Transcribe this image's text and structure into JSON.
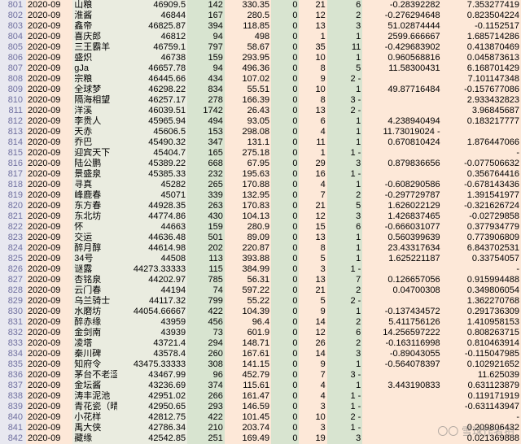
{
  "colors": {
    "rownum_bg": "#e8e8f0",
    "rownum_fg": "#7070a0",
    "peach": "#fde8d8",
    "olive": "#eaece0",
    "sage": "#d8e4d0"
  },
  "watermark": "〇〇 雪球作者拍",
  "columns": [
    "row",
    "date",
    "name",
    "c3",
    "c4",
    "c5",
    "c6",
    "c7",
    "c8",
    "c9",
    "c10"
  ],
  "rows": [
    {
      "row": "801",
      "date": "2020-09",
      "name": "山粮",
      "c3": "46909.5",
      "c4": "142",
      "c5": "330.35",
      "c6": "0",
      "c7": "21",
      "c8": "6",
      "c9": "-0.28392282",
      "c10": "7.353277419"
    },
    {
      "row": "802",
      "date": "2020-09",
      "name": "淮酱",
      "c3": "46844",
      "c4": "167",
      "c5": "280.5",
      "c6": "0",
      "c7": "12",
      "c8": "2",
      "c9": "-0.276294648",
      "c10": "0.823504224"
    },
    {
      "row": "803",
      "date": "2020-09",
      "name": "鑫帝",
      "c3": "46825.87",
      "c4": "394",
      "c5": "118.85",
      "c6": "0",
      "c7": "13",
      "c8": "3",
      "c9": "51.02874444",
      "c10": "-0.1152517"
    },
    {
      "row": "804",
      "date": "2020-09",
      "name": "喜庆郎",
      "c3": "46812",
      "c4": "94",
      "c5": "498",
      "c6": "0",
      "c7": "1",
      "c8": "1",
      "c9": "2599.666667",
      "c10": "1.685714286"
    },
    {
      "row": "805",
      "date": "2020-09",
      "name": "三王霸羊",
      "c3": "46759.1",
      "c4": "797",
      "c5": "58.67",
      "c6": "0",
      "c7": "35",
      "c8": "11",
      "c9": "-0.429683902",
      "c10": "0.413870469"
    },
    {
      "row": "806",
      "date": "2020-09",
      "name": "盛炽",
      "c3": "46738",
      "c4": "159",
      "c5": "293.95",
      "c6": "0",
      "c7": "10",
      "c8": "1",
      "c9": "0.960568816",
      "c10": "0.045873613"
    },
    {
      "row": "807",
      "date": "2020-09",
      "name": "gJa",
      "c3": "46657.78",
      "c4": "94",
      "c5": "496.36",
      "c6": "0",
      "c7": "8",
      "c8": "5",
      "c9": "11.58300431",
      "c10": "6.168701429"
    },
    {
      "row": "808",
      "date": "2020-09",
      "name": "宗粮",
      "c3": "46445.66",
      "c4": "434",
      "c5": "107.02",
      "c6": "0",
      "c7": "9",
      "c8": "2 -",
      "c9": "",
      "c10": "7.101147348"
    },
    {
      "row": "809",
      "date": "2020-09",
      "name": "全球梦",
      "c3": "46298.22",
      "c4": "834",
      "c5": "55.51",
      "c6": "0",
      "c7": "10",
      "c8": "1",
      "c9": "49.87716484",
      "c10": "-0.157677086"
    },
    {
      "row": "810",
      "date": "2020-09",
      "name": "隔海相望",
      "c3": "46257.17",
      "c4": "278",
      "c5": "166.39",
      "c6": "0",
      "c7": "8",
      "c8": "3 -",
      "c9": "",
      "c10": "2.933432823"
    },
    {
      "row": "811",
      "date": "2020-09",
      "name": "洋溪",
      "c3": "46039.51",
      "c4": "1742",
      "c5": "26.43",
      "c6": "0",
      "c7": "13",
      "c8": "2 -",
      "c9": "",
      "c10": "3.96845687"
    },
    {
      "row": "812",
      "date": "2020-09",
      "name": "李贵人",
      "c3": "45965.94",
      "c4": "494",
      "c5": "93.05",
      "c6": "0",
      "c7": "6",
      "c8": "1",
      "c9": "4.238940494",
      "c10": "0.183217777"
    },
    {
      "row": "813",
      "date": "2020-09",
      "name": "天赤",
      "c3": "45606.5",
      "c4": "153",
      "c5": "298.08",
      "c6": "0",
      "c7": "4",
      "c8": "1",
      "c9": "11.73019024 -",
      "c10": ""
    },
    {
      "row": "814",
      "date": "2020-09",
      "name": "乔巴",
      "c3": "45490.32",
      "c4": "347",
      "c5": "131.1",
      "c6": "0",
      "c7": "11",
      "c8": "1",
      "c9": "0.670810424",
      "c10": "1.876447066"
    },
    {
      "row": "815",
      "date": "2020-09",
      "name": "迎宾天下",
      "c3": "45404.7",
      "c4": "165",
      "c5": "275.18",
      "c6": "0",
      "c7": "1",
      "c8": "1 -",
      "c9": "",
      "c10": "-"
    },
    {
      "row": "816",
      "date": "2020-09",
      "name": "陆公鹏",
      "c3": "45389.22",
      "c4": "668",
      "c5": "67.95",
      "c6": "0",
      "c7": "29",
      "c8": "3",
      "c9": "0.879836656",
      "c10": "-0.077506632"
    },
    {
      "row": "817",
      "date": "2020-09",
      "name": "景盛泉",
      "c3": "45385.33",
      "c4": "232",
      "c5": "195.63",
      "c6": "0",
      "c7": "16",
      "c8": "1 -",
      "c9": "",
      "c10": "0.356764416"
    },
    {
      "row": "818",
      "date": "2020-09",
      "name": "寻真",
      "c3": "45282",
      "c4": "265",
      "c5": "170.88",
      "c6": "0",
      "c7": "4",
      "c8": "1",
      "c9": "-0.608290586",
      "c10": "-0.678143436"
    },
    {
      "row": "819",
      "date": "2020-09",
      "name": "峰鹿春",
      "c3": "45071",
      "c4": "339",
      "c5": "132.95",
      "c6": "0",
      "c7": "7",
      "c8": "2",
      "c9": "-0.297729787",
      "c10": "1.391541977"
    },
    {
      "row": "820",
      "date": "2020-09",
      "name": "东方春",
      "c3": "44928.35",
      "c4": "263",
      "c5": "170.83",
      "c6": "0",
      "c7": "21",
      "c8": "5",
      "c9": "1.626022129",
      "c10": "-0.321626724"
    },
    {
      "row": "821",
      "date": "2020-09",
      "name": "东北坊",
      "c3": "44774.86",
      "c4": "430",
      "c5": "104.13",
      "c6": "0",
      "c7": "12",
      "c8": "3",
      "c9": "1.426837465",
      "c10": "-0.02729858"
    },
    {
      "row": "822",
      "date": "2020-09",
      "name": "怀",
      "c3": "44663",
      "c4": "159",
      "c5": "280.9",
      "c6": "0",
      "c7": "15",
      "c8": "6",
      "c9": "-0.666031077",
      "c10": "0.377934779"
    },
    {
      "row": "823",
      "date": "2020-09",
      "name": "交运",
      "c3": "44636.48",
      "c4": "501",
      "c5": "89.09",
      "c6": "0",
      "c7": "13",
      "c8": "1",
      "c9": "0.560399639",
      "c10": "0.773906809"
    },
    {
      "row": "824",
      "date": "2020-09",
      "name": "醉月醇",
      "c3": "44614.98",
      "c4": "202",
      "c5": "220.87",
      "c6": "0",
      "c7": "8",
      "c8": "1",
      "c9": "23.43317634",
      "c10": "6.843702531"
    },
    {
      "row": "825",
      "date": "2020-09",
      "name": "34号",
      "c3": "44508",
      "c4": "113",
      "c5": "393.88",
      "c6": "0",
      "c7": "5",
      "c8": "1",
      "c9": "1.625221187",
      "c10": "0.33754057"
    },
    {
      "row": "826",
      "date": "2020-09",
      "name": "谜露",
      "c3": "44273.33333",
      "c4": "115",
      "c5": "384.99",
      "c6": "0",
      "c7": "3",
      "c8": "1 -",
      "c9": "",
      "c10": "-"
    },
    {
      "row": "827",
      "date": "2020-09",
      "name": "杏铭泉",
      "c3": "44202.97",
      "c4": "785",
      "c5": "56.31",
      "c6": "0",
      "c7": "13",
      "c8": "7",
      "c9": "0.126657056",
      "c10": "0.915994488"
    },
    {
      "row": "828",
      "date": "2020-09",
      "name": "云门春",
      "c3": "44194",
      "c4": "74",
      "c5": "597.22",
      "c6": "0",
      "c7": "21",
      "c8": "2",
      "c9": "0.04700308",
      "c10": "0.349806054"
    },
    {
      "row": "829",
      "date": "2020-09",
      "name": "乌兰骑士",
      "c3": "44117.32",
      "c4": "799",
      "c5": "55.22",
      "c6": "0",
      "c7": "5",
      "c8": "2 -",
      "c9": "",
      "c10": "1.362270768"
    },
    {
      "row": "830",
      "date": "2020-09",
      "name": "水磨坊",
      "c3": "44054.66667",
      "c4": "422",
      "c5": "104.39",
      "c6": "0",
      "c7": "9",
      "c8": "1",
      "c9": "-0.137434572",
      "c10": "0.291736309"
    },
    {
      "row": "831",
      "date": "2020-09",
      "name": "醉赤缘",
      "c3": "43959",
      "c4": "456",
      "c5": "96.4",
      "c6": "0",
      "c7": "14",
      "c8": "2",
      "c9": "5.411756126",
      "c10": "1.410958153"
    },
    {
      "row": "832",
      "date": "2020-09",
      "name": "金剑南",
      "c3": "43939",
      "c4": "73",
      "c5": "601.9",
      "c6": "0",
      "c7": "12",
      "c8": "6",
      "c9": "14.256597222",
      "c10": "0.808263715"
    },
    {
      "row": "833",
      "date": "2020-09",
      "name": "凌塔",
      "c3": "43721.4",
      "c4": "294",
      "c5": "148.71",
      "c6": "0",
      "c7": "26",
      "c8": "2",
      "c9": "-0.163116998",
      "c10": "0.810463914"
    },
    {
      "row": "834",
      "date": "2020-09",
      "name": "秦川碑",
      "c3": "43578.4",
      "c4": "260",
      "c5": "167.61",
      "c6": "0",
      "c7": "14",
      "c8": "3",
      "c9": "-0.89043055",
      "c10": "-0.115047985"
    },
    {
      "row": "835",
      "date": "2020-09",
      "name": "知府令",
      "c3": "43475.33333",
      "c4": "308",
      "c5": "141.15",
      "c6": "0",
      "c7": "9",
      "c8": "1",
      "c9": "-0.564078397",
      "c10": "0.102921652"
    },
    {
      "row": "836",
      "date": "2020-09",
      "name": "茅台不老涩",
      "c3": "43467.99",
      "c4": "96",
      "c5": "452.79",
      "c6": "0",
      "c7": "7",
      "c8": "3 -",
      "c9": "",
      "c10": "11.625039"
    },
    {
      "row": "837",
      "date": "2020-09",
      "name": "金坛酱",
      "c3": "43236.69",
      "c4": "374",
      "c5": "115.61",
      "c6": "0",
      "c7": "4",
      "c8": "1",
      "c9": "3.443190833",
      "c10": "0.631123879"
    },
    {
      "row": "838",
      "date": "2020-09",
      "name": "涛丰泥池",
      "c3": "42951.02",
      "c4": "266",
      "c5": "161.47",
      "c6": "0",
      "c7": "4",
      "c8": "1 -",
      "c9": "",
      "c10": "0.119171919"
    },
    {
      "row": "839",
      "date": "2020-09",
      "name": "青花瓷（晴",
      "c3": "42950.65",
      "c4": "293",
      "c5": "146.59",
      "c6": "0",
      "c7": "3",
      "c8": "1 -",
      "c9": "",
      "c10": "-0.631143947"
    },
    {
      "row": "840",
      "date": "2020-09",
      "name": "小花样",
      "c3": "42812.75",
      "c4": "422",
      "c5": "101.45",
      "c6": "0",
      "c7": "10",
      "c8": "2 -",
      "c9": "",
      "c10": "-"
    },
    {
      "row": "841",
      "date": "2020-09",
      "name": "禹大侠",
      "c3": "42786.34",
      "c4": "210",
      "c5": "203.74",
      "c6": "0",
      "c7": "3",
      "c8": "1 -",
      "c9": "",
      "c10": "0.209806432"
    },
    {
      "row": "842",
      "date": "2020-09",
      "name": "藏缘",
      "c3": "42542.85",
      "c4": "251",
      "c5": "169.49",
      "c6": "0",
      "c7": "19",
      "c8": "3",
      "c9": "",
      "c10": "0.021369888"
    }
  ]
}
